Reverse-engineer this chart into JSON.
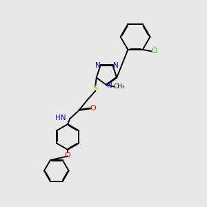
{
  "bg_color": "#e8e8e8",
  "bond_color": "#000000",
  "n_color": "#0000cc",
  "o_color": "#dd0000",
  "s_color": "#bbaa00",
  "cl_color": "#00bb00",
  "lw": 1.4,
  "dbo": 0.035,
  "xlim": [
    0,
    10
  ],
  "ylim": [
    0,
    10
  ]
}
